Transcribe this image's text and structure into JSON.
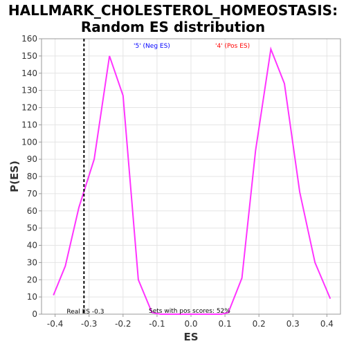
{
  "chart_data": {
    "type": "line",
    "title_line1": "HALLMARK_CHOLESTEROL_HOMEOSTASIS:",
    "title_line2": "Random ES distribution",
    "xlabel": "ES",
    "ylabel": "P(ES)",
    "xlim": [
      -0.44,
      0.44
    ],
    "ylim": [
      0,
      160
    ],
    "xticks": [
      "-0.4",
      "-0.3",
      "-0.2",
      "-0.1",
      "0.0",
      "0.1",
      "0.2",
      "0.3",
      "0.4"
    ],
    "xtick_values": [
      -0.4,
      -0.3,
      -0.2,
      -0.1,
      0.0,
      0.1,
      0.2,
      0.3,
      0.4
    ],
    "yticks": [
      0,
      10,
      20,
      30,
      40,
      50,
      60,
      70,
      80,
      90,
      100,
      110,
      120,
      130,
      140,
      150,
      160
    ],
    "grid": true,
    "series": [
      {
        "color": "#ff33ff",
        "x": [
          -0.405,
          -0.37,
          -0.33,
          -0.285,
          -0.24,
          -0.2,
          -0.155,
          -0.115,
          -0.09,
          0.09,
          0.11,
          0.15,
          0.19,
          0.235,
          0.275,
          0.32,
          0.365,
          0.41
        ],
        "y": [
          11,
          28,
          62,
          90,
          150,
          127,
          20,
          1,
          0,
          0,
          1,
          21,
          95,
          154,
          134,
          71,
          30,
          9
        ]
      }
    ],
    "real_es": {
      "value": -0.315,
      "label": "Real ES -0.3"
    },
    "legend_neg": {
      "text": "'5' (Neg ES)",
      "color": "#0000ff"
    },
    "legend_pos": {
      "text": "'4' (Pos ES)",
      "color": "#ff0000"
    },
    "footer_note": "Sets with pos scores: 52%"
  }
}
